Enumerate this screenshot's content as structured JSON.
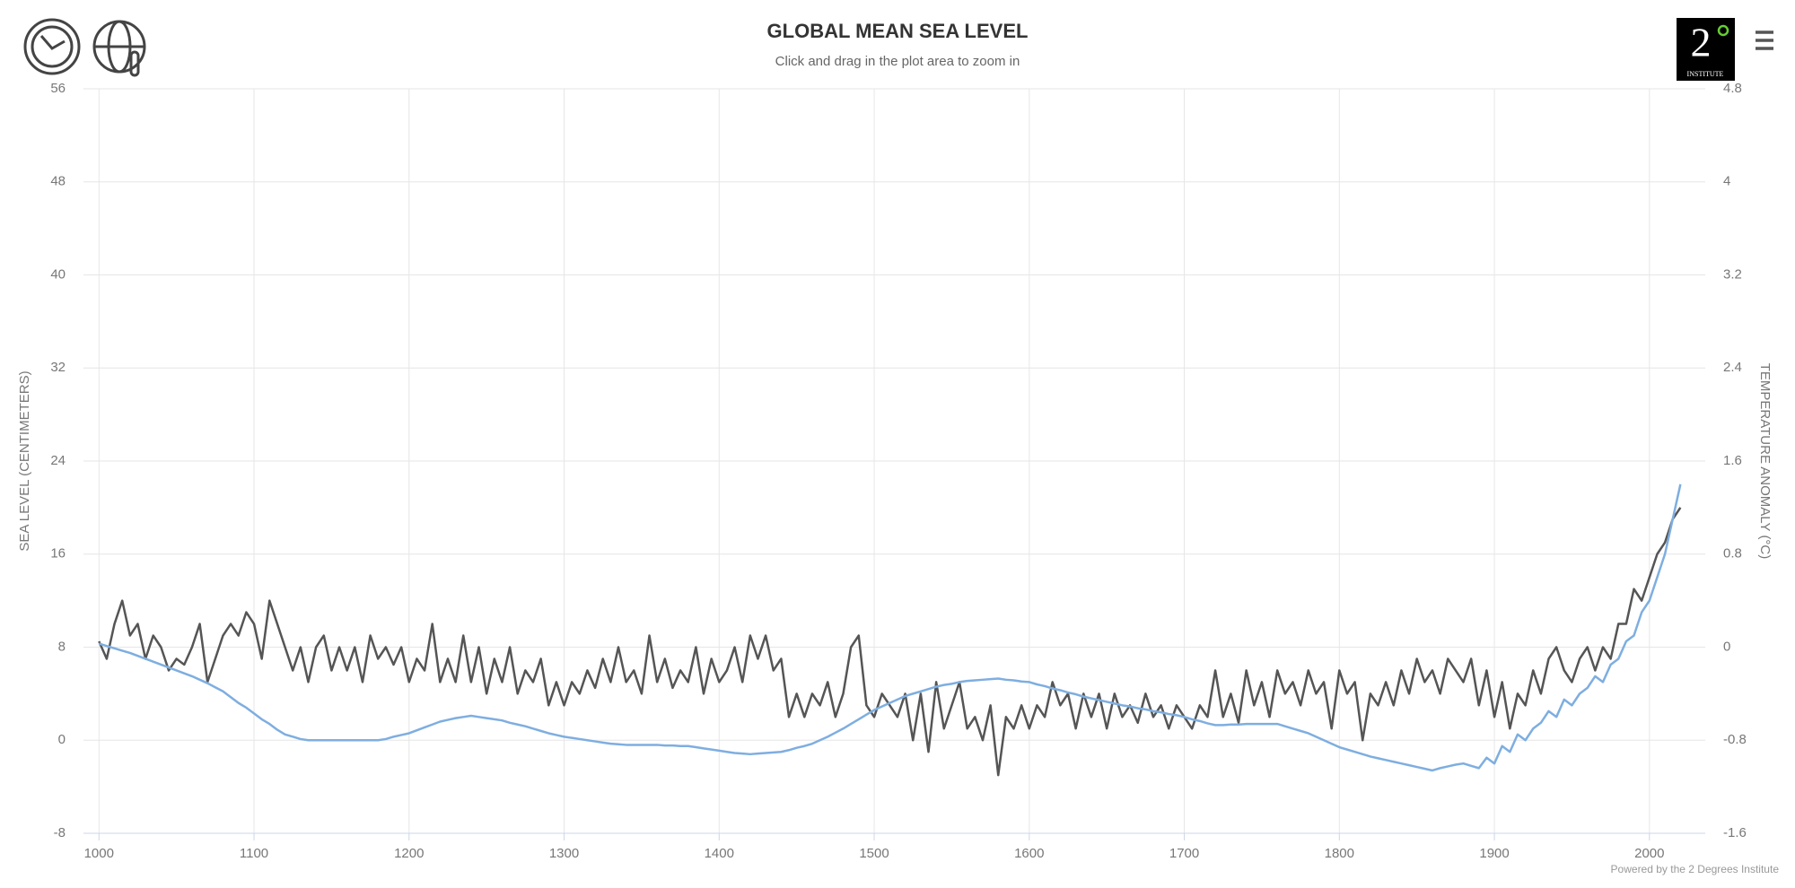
{
  "chart_data": {
    "type": "line",
    "title": "GLOBAL MEAN SEA LEVEL",
    "subtitle": "Click and drag in the plot area to zoom in",
    "y_label": "SEA LEVEL (CENTIMETERS)",
    "y2_label": "TEMPERATURE ANOMALY (°C)",
    "credits": "Powered by the 2 Degrees Institute",
    "logo": {
      "numeral": "2",
      "text": "INSTITUTE"
    },
    "xlim": [
      990,
      2036
    ],
    "xticks": [
      1000,
      1100,
      1200,
      1300,
      1400,
      1500,
      1600,
      1700,
      1800,
      1900,
      2000
    ],
    "ylim": [
      -8,
      56
    ],
    "yticks": [
      -8,
      0,
      8,
      16,
      24,
      32,
      40,
      48,
      56
    ],
    "y2lim": [
      -1.6,
      4.8
    ],
    "y2ticks": [
      -1.6,
      -0.8,
      0,
      0.8,
      1.6,
      2.4,
      3.2,
      4,
      4.8
    ],
    "grid": true,
    "x": [
      1000,
      1005,
      1010,
      1015,
      1020,
      1025,
      1030,
      1035,
      1040,
      1045,
      1050,
      1055,
      1060,
      1065,
      1070,
      1075,
      1080,
      1085,
      1090,
      1095,
      1100,
      1105,
      1110,
      1115,
      1120,
      1125,
      1130,
      1135,
      1140,
      1145,
      1150,
      1155,
      1160,
      1165,
      1170,
      1175,
      1180,
      1185,
      1190,
      1195,
      1200,
      1205,
      1210,
      1215,
      1220,
      1225,
      1230,
      1235,
      1240,
      1245,
      1250,
      1255,
      1260,
      1265,
      1270,
      1275,
      1280,
      1285,
      1290,
      1295,
      1300,
      1305,
      1310,
      1315,
      1320,
      1325,
      1330,
      1335,
      1340,
      1345,
      1350,
      1355,
      1360,
      1365,
      1370,
      1375,
      1380,
      1385,
      1390,
      1395,
      1400,
      1405,
      1410,
      1415,
      1420,
      1425,
      1430,
      1435,
      1440,
      1445,
      1450,
      1455,
      1460,
      1465,
      1470,
      1475,
      1480,
      1485,
      1490,
      1495,
      1500,
      1505,
      1510,
      1515,
      1520,
      1525,
      1530,
      1535,
      1540,
      1545,
      1550,
      1555,
      1560,
      1565,
      1570,
      1575,
      1580,
      1585,
      1590,
      1595,
      1600,
      1605,
      1610,
      1615,
      1620,
      1625,
      1630,
      1635,
      1640,
      1645,
      1650,
      1655,
      1660,
      1665,
      1670,
      1675,
      1680,
      1685,
      1690,
      1695,
      1700,
      1705,
      1710,
      1715,
      1720,
      1725,
      1730,
      1735,
      1740,
      1745,
      1750,
      1755,
      1760,
      1765,
      1770,
      1775,
      1780,
      1785,
      1790,
      1795,
      1800,
      1805,
      1810,
      1815,
      1820,
      1825,
      1830,
      1835,
      1840,
      1845,
      1850,
      1855,
      1860,
      1865,
      1870,
      1875,
      1880,
      1885,
      1890,
      1895,
      1900,
      1905,
      1910,
      1915,
      1920,
      1925,
      1930,
      1935,
      1940,
      1945,
      1950,
      1955,
      1960,
      1965,
      1970,
      1975,
      1980,
      1985,
      1990,
      1995,
      2000,
      2005,
      2010,
      2015,
      2020
    ],
    "series": [
      {
        "color": "#555555",
        "axis": "y2",
        "values": [
          0.05,
          -0.1,
          0.2,
          0.4,
          0.1,
          0.2,
          -0.1,
          0.1,
          0,
          -0.2,
          -0.1,
          -0.15,
          0,
          0.2,
          -0.3,
          -0.1,
          0.1,
          0.2,
          0.1,
          0.3,
          0.2,
          -0.1,
          0.4,
          0.2,
          0,
          -0.2,
          0,
          -0.3,
          0,
          0.1,
          -0.2,
          0,
          -0.2,
          0,
          -0.3,
          0.1,
          -0.1,
          0,
          -0.15,
          0,
          -0.3,
          -0.1,
          -0.2,
          0.2,
          -0.3,
          -0.1,
          -0.3,
          0.1,
          -0.3,
          0,
          -0.4,
          -0.1,
          -0.3,
          0,
          -0.4,
          -0.2,
          -0.3,
          -0.1,
          -0.5,
          -0.3,
          -0.5,
          -0.3,
          -0.4,
          -0.2,
          -0.35,
          -0.1,
          -0.3,
          0,
          -0.3,
          -0.2,
          -0.4,
          0.1,
          -0.3,
          -0.1,
          -0.35,
          -0.2,
          -0.3,
          0,
          -0.4,
          -0.1,
          -0.3,
          -0.2,
          0,
          -0.3,
          0.1,
          -0.1,
          0.1,
          -0.2,
          -0.1,
          -0.6,
          -0.4,
          -0.6,
          -0.4,
          -0.5,
          -0.3,
          -0.6,
          -0.4,
          0,
          0.1,
          -0.5,
          -0.6,
          -0.4,
          -0.5,
          -0.6,
          -0.4,
          -0.8,
          -0.4,
          -0.9,
          -0.3,
          -0.7,
          -0.5,
          -0.3,
          -0.7,
          -0.6,
          -0.8,
          -0.5,
          -1.1,
          -0.6,
          -0.7,
          -0.5,
          -0.7,
          -0.5,
          -0.6,
          -0.3,
          -0.5,
          -0.4,
          -0.7,
          -0.4,
          -0.6,
          -0.4,
          -0.7,
          -0.4,
          -0.6,
          -0.5,
          -0.65,
          -0.4,
          -0.6,
          -0.5,
          -0.7,
          -0.5,
          -0.6,
          -0.7,
          -0.5,
          -0.6,
          -0.2,
          -0.6,
          -0.4,
          -0.65,
          -0.2,
          -0.5,
          -0.3,
          -0.6,
          -0.2,
          -0.4,
          -0.3,
          -0.5,
          -0.2,
          -0.4,
          -0.3,
          -0.7,
          -0.2,
          -0.4,
          -0.3,
          -0.8,
          -0.4,
          -0.5,
          -0.3,
          -0.5,
          -0.2,
          -0.4,
          -0.1,
          -0.3,
          -0.2,
          -0.4,
          -0.1,
          -0.2,
          -0.3,
          -0.1,
          -0.5,
          -0.2,
          -0.6,
          -0.3,
          -0.7,
          -0.4,
          -0.5,
          -0.2,
          -0.4,
          -0.1,
          0,
          -0.2,
          -0.3,
          -0.1,
          0,
          -0.2,
          0,
          -0.1,
          0.2,
          0.2,
          0.5,
          0.4,
          0.6,
          0.8,
          0.9,
          1.1,
          1.2
        ]
      },
      {
        "color": "#7eaee0",
        "values": [
          8.3,
          8.1,
          7.9,
          7.7,
          7.5,
          7.25,
          7,
          6.75,
          6.5,
          6.25,
          6,
          5.75,
          5.5,
          5.2,
          4.9,
          4.55,
          4.2,
          3.7,
          3.2,
          2.8,
          2.3,
          1.8,
          1.4,
          0.9,
          0.5,
          0.3,
          0.1,
          0,
          0,
          0,
          0,
          0,
          0,
          0,
          0,
          0,
          0,
          0.1,
          0.3,
          0.45,
          0.6,
          0.85,
          1.1,
          1.35,
          1.6,
          1.75,
          1.9,
          2,
          2.1,
          2,
          1.9,
          1.8,
          1.7,
          1.5,
          1.35,
          1.2,
          1,
          0.8,
          0.6,
          0.45,
          0.3,
          0.2,
          0.1,
          0,
          -0.1,
          -0.2,
          -0.3,
          -0.35,
          -0.4,
          -0.4,
          -0.4,
          -0.4,
          -0.4,
          -0.45,
          -0.45,
          -0.5,
          -0.5,
          -0.6,
          -0.7,
          -0.8,
          -0.9,
          -1,
          -1.1,
          -1.15,
          -1.2,
          -1.15,
          -1.1,
          -1.05,
          -1,
          -0.85,
          -0.65,
          -0.5,
          -0.3,
          0,
          0.3,
          0.65,
          1,
          1.4,
          1.8,
          2.2,
          2.6,
          2.9,
          3.2,
          3.5,
          3.8,
          4,
          4.2,
          4.4,
          4.6,
          4.75,
          4.85,
          5,
          5.1,
          5.15,
          5.2,
          5.25,
          5.3,
          5.2,
          5.15,
          5.05,
          5,
          4.8,
          4.65,
          4.45,
          4.3,
          4.1,
          3.95,
          3.75,
          3.6,
          3.45,
          3.3,
          3.15,
          3,
          2.9,
          2.75,
          2.65,
          2.5,
          2.4,
          2.25,
          2.15,
          2,
          1.8,
          1.65,
          1.45,
          1.3,
          1.3,
          1.35,
          1.35,
          1.4,
          1.4,
          1.4,
          1.4,
          1.4,
          1.2,
          1,
          0.8,
          0.6,
          0.3,
          0,
          -0.3,
          -0.6,
          -0.8,
          -1,
          -1.2,
          -1.4,
          -1.55,
          -1.7,
          -1.85,
          -2,
          -2.15,
          -2.3,
          -2.45,
          -2.6,
          -2.4,
          -2.25,
          -2.1,
          -2,
          -2.2,
          -2.4,
          -1.5,
          -2,
          -0.5,
          -1,
          0.5,
          0,
          1,
          1.5,
          2.5,
          2,
          3.5,
          3,
          4,
          4.5,
          5.5,
          5,
          6.5,
          7,
          8.5,
          9,
          11,
          12,
          14,
          16,
          19,
          22
        ]
      }
    ]
  }
}
